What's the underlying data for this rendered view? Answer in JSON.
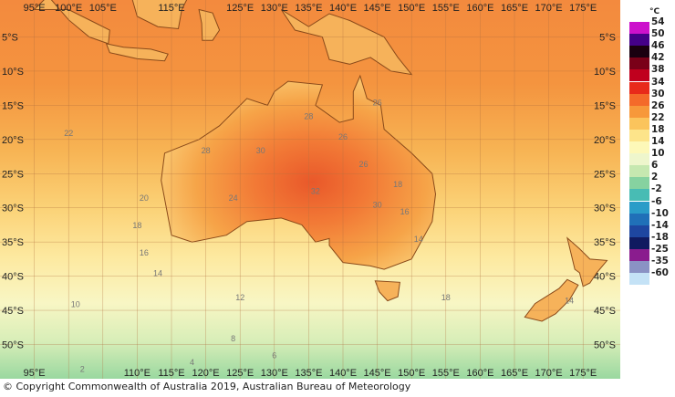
{
  "map": {
    "top_lon_labels": [
      "95°E",
      "100°E",
      "105°E",
      "115°E",
      "125°E",
      "130°E",
      "135°E",
      "140°E",
      "145°E",
      "150°E",
      "155°E",
      "160°E",
      "165°E",
      "170°E",
      "175°E"
    ],
    "bottom_lon_labels": [
      "95°E",
      "110°E",
      "115°E",
      "120°E",
      "125°E",
      "130°E",
      "135°E",
      "140°E",
      "145°E",
      "150°E",
      "155°E",
      "160°E",
      "165°E",
      "170°E",
      "175°E"
    ],
    "lat_labels": [
      "5°S",
      "10°S",
      "15°S",
      "20°S",
      "25°S",
      "30°S",
      "35°S",
      "40°S",
      "45°S",
      "50°S"
    ],
    "contour_labels": [
      "26",
      "22",
      "28",
      "30",
      "26",
      "24",
      "20",
      "18",
      "16",
      "14",
      "10",
      "12",
      "8",
      "6",
      "4",
      "2",
      "18",
      "14",
      "32",
      "30",
      "28",
      "26",
      "18",
      "16",
      "14"
    ]
  },
  "legend": {
    "unit": "°C",
    "entries": [
      {
        "label": "54",
        "color": "#cc11cc"
      },
      {
        "label": "50",
        "color": "#440088"
      },
      {
        "label": "46",
        "color": "#1a0010"
      },
      {
        "label": "42",
        "color": "#7a0018"
      },
      {
        "label": "38",
        "color": "#c0001e"
      },
      {
        "label": "34",
        "color": "#e82a1a"
      },
      {
        "label": "30",
        "color": "#f46a2a"
      },
      {
        "label": "26",
        "color": "#f7983a"
      },
      {
        "label": "22",
        "color": "#fbc45c"
      },
      {
        "label": "18",
        "color": "#fde48a"
      },
      {
        "label": "14",
        "color": "#fdf8b8"
      },
      {
        "label": "10",
        "color": "#eef6cc"
      },
      {
        "label": "6",
        "color": "#c6e8b0"
      },
      {
        "label": "2",
        "color": "#86d2a0"
      },
      {
        "label": "-2",
        "color": "#48bcb4"
      },
      {
        "label": "-6",
        "color": "#2a9cc8"
      },
      {
        "label": "-10",
        "color": "#2070b8"
      },
      {
        "label": "-14",
        "color": "#1e46a0"
      },
      {
        "label": "-18",
        "color": "#101a60"
      },
      {
        "label": "-25",
        "color": "#8a1c8e"
      },
      {
        "label": "-35",
        "color": "#8a92c4"
      },
      {
        "label": "-60",
        "color": "#c4e2f6"
      }
    ]
  },
  "copyright": "© Copyright Commonwealth of Australia 2019, Australian Bureau of Meteorology"
}
